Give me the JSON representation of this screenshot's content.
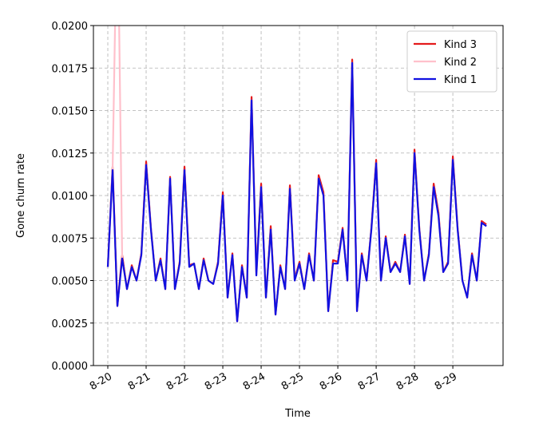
{
  "chart_data": {
    "type": "line",
    "xlabel": "Time",
    "ylabel": "Gone churn rate",
    "x": [
      0,
      0.125,
      0.25,
      0.375,
      0.5,
      0.625,
      0.75,
      0.875,
      1,
      1.125,
      1.25,
      1.375,
      1.5,
      1.625,
      1.75,
      1.875,
      2,
      2.125,
      2.25,
      2.375,
      2.5,
      2.625,
      2.75,
      2.875,
      3,
      3.125,
      3.25,
      3.375,
      3.5,
      3.625,
      3.75,
      3.875,
      4,
      4.125,
      4.25,
      4.375,
      4.5,
      4.625,
      4.75,
      4.875,
      5,
      5.125,
      5.25,
      5.375,
      5.5,
      5.625,
      5.75,
      5.875,
      6,
      6.125,
      6.25,
      6.375,
      6.5,
      6.625,
      6.75,
      6.875,
      7,
      7.125,
      7.25,
      7.375,
      7.5,
      7.625,
      7.75,
      7.875,
      8,
      8.125,
      8.25,
      8.375,
      8.5,
      8.625,
      8.75,
      8.875,
      9,
      9.125,
      9.25,
      9.375,
      9.5,
      9.625,
      9.75,
      9.875
    ],
    "series": [
      {
        "name": "Kind 3",
        "color": "#e41a1c",
        "values": [
          0.0058,
          0.0117,
          0.0035,
          0.0065,
          0.0045,
          0.0059,
          0.005,
          0.0066,
          0.012,
          0.0081,
          0.005,
          0.0063,
          0.0045,
          0.0111,
          0.0045,
          0.0061,
          0.0117,
          0.0059,
          0.006,
          0.0045,
          0.0063,
          0.005,
          0.0048,
          0.0061,
          0.0102,
          0.004,
          0.0066,
          0.0026,
          0.0059,
          0.004,
          0.0158,
          0.0055,
          0.0107,
          0.004,
          0.0082,
          0.003,
          0.0059,
          0.0045,
          0.0106,
          0.0051,
          0.0061,
          0.0045,
          0.0066,
          0.005,
          0.0112,
          0.0102,
          0.0032,
          0.0062,
          0.0061,
          0.0081,
          0.005,
          0.018,
          0.0032,
          0.0066,
          0.005,
          0.0081,
          0.0121,
          0.005,
          0.0076,
          0.0055,
          0.0061,
          0.0055,
          0.0077,
          0.0048,
          0.0127,
          0.0081,
          0.005,
          0.0066,
          0.0107,
          0.009,
          0.0055,
          0.0061,
          0.0123,
          0.0081,
          0.005,
          0.004,
          0.0066,
          0.005,
          0.0085,
          0.0083
        ]
      },
      {
        "name": "Kind 2",
        "color": "#ffc0cb",
        "values": [
          0.0058,
          0.0115,
          0.028,
          0.0063,
          0.0045,
          0.0058,
          0.005,
          0.0065,
          0.0118,
          0.008,
          0.005,
          0.0062,
          0.0045,
          0.011,
          0.0045,
          0.006,
          0.0115,
          0.0058,
          0.006,
          0.0045,
          0.0062,
          0.005,
          0.0048,
          0.006,
          0.01,
          0.004,
          0.0065,
          0.0026,
          0.0058,
          0.004,
          0.0156,
          0.0053,
          0.0105,
          0.004,
          0.008,
          0.003,
          0.0058,
          0.0045,
          0.0104,
          0.005,
          0.006,
          0.0045,
          0.0065,
          0.005,
          0.011,
          0.01,
          0.0032,
          0.006,
          0.006,
          0.008,
          0.005,
          0.0178,
          0.0032,
          0.0065,
          0.005,
          0.008,
          0.0119,
          0.005,
          0.0075,
          0.0055,
          0.006,
          0.0055,
          0.0076,
          0.0048,
          0.0125,
          0.008,
          0.005,
          0.0065,
          0.0105,
          0.0088,
          0.0055,
          0.006,
          0.0121,
          0.008,
          0.005,
          0.004,
          0.0065,
          0.005,
          0.0084,
          0.0082
        ]
      },
      {
        "name": "Kind 1",
        "color": "#1010e0",
        "values": [
          0.0058,
          0.0115,
          0.0035,
          0.0063,
          0.0045,
          0.0058,
          0.005,
          0.0065,
          0.0118,
          0.008,
          0.005,
          0.0062,
          0.0045,
          0.011,
          0.0045,
          0.006,
          0.0115,
          0.0058,
          0.006,
          0.0045,
          0.0062,
          0.005,
          0.0048,
          0.006,
          0.01,
          0.004,
          0.0065,
          0.0026,
          0.0058,
          0.004,
          0.0156,
          0.0053,
          0.0105,
          0.004,
          0.008,
          0.003,
          0.0058,
          0.0045,
          0.0104,
          0.005,
          0.006,
          0.0045,
          0.0065,
          0.005,
          0.011,
          0.01,
          0.0032,
          0.006,
          0.006,
          0.008,
          0.005,
          0.0178,
          0.0032,
          0.0065,
          0.005,
          0.008,
          0.0119,
          0.005,
          0.0075,
          0.0055,
          0.006,
          0.0055,
          0.0076,
          0.0048,
          0.0125,
          0.008,
          0.005,
          0.0065,
          0.0105,
          0.0088,
          0.0055,
          0.006,
          0.0121,
          0.008,
          0.005,
          0.004,
          0.0065,
          0.005,
          0.0084,
          0.0082
        ]
      }
    ],
    "xlim": [
      -0.375,
      10.31
    ],
    "xticks": [
      {
        "value": 0,
        "label": "8-20"
      },
      {
        "value": 1,
        "label": "8-21"
      },
      {
        "value": 2,
        "label": "8-22"
      },
      {
        "value": 3,
        "label": "8-23"
      },
      {
        "value": 4,
        "label": "8-24"
      },
      {
        "value": 5,
        "label": "8-25"
      },
      {
        "value": 6,
        "label": "8-26"
      },
      {
        "value": 7,
        "label": "8-27"
      },
      {
        "value": 8,
        "label": "8-28"
      },
      {
        "value": 9,
        "label": "8-29"
      }
    ],
    "ylim": [
      0,
      0.02
    ],
    "yticks": [
      {
        "value": 0,
        "label": "0.0000"
      },
      {
        "value": 0.0025,
        "label": "0.0025"
      },
      {
        "value": 0.005,
        "label": "0.0050"
      },
      {
        "value": 0.0075,
        "label": "0.0075"
      },
      {
        "value": 0.01,
        "label": "0.0100"
      },
      {
        "value": 0.0125,
        "label": "0.0125"
      },
      {
        "value": 0.015,
        "label": "0.0150"
      },
      {
        "value": 0.0175,
        "label": "0.0175"
      },
      {
        "value": 0.02,
        "label": "0.0200"
      }
    ],
    "grid": true,
    "legend": "upper right"
  }
}
